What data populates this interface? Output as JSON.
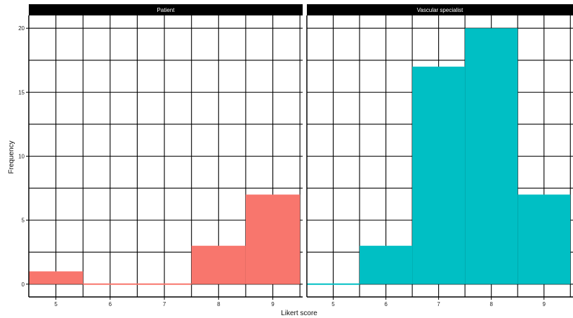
{
  "chart_data": {
    "type": "bar",
    "title": "",
    "xlabel": "Likert score",
    "ylabel": "Frequency",
    "x": [
      5,
      6,
      7,
      8,
      9
    ],
    "ylim": [
      -1,
      21
    ],
    "y_ticks": [
      "0",
      "5",
      "10",
      "15",
      "20"
    ],
    "x_tick_labels": [
      "5",
      "6",
      "7",
      "8",
      "9"
    ],
    "grid": true,
    "legend": "none",
    "panels": [
      {
        "name": "Patient",
        "color": "#F8766D",
        "xlim": [
          4.5,
          9.55
        ],
        "values": [
          1,
          0,
          0,
          3,
          7
        ]
      },
      {
        "name": "Vascular specialist",
        "color": "#00BFC4",
        "xlim": [
          4.5,
          9.55
        ],
        "values": [
          0,
          3,
          17,
          20,
          7
        ]
      }
    ]
  }
}
